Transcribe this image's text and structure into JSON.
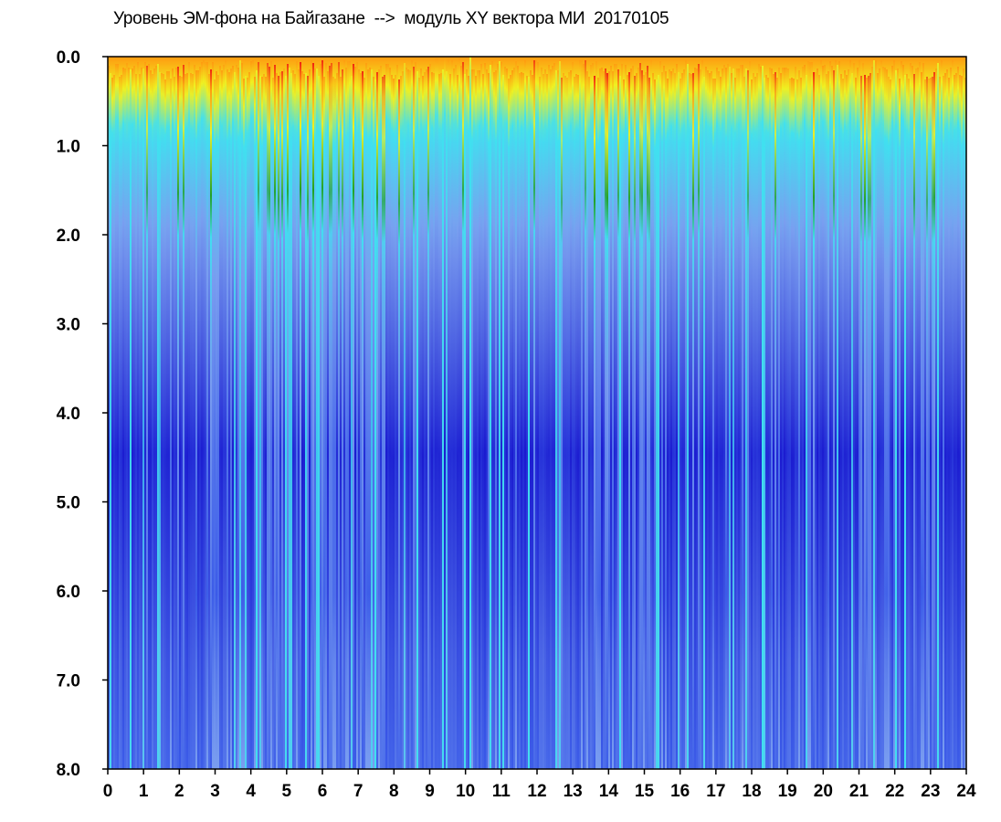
{
  "chart_data": {
    "type": "heatmap",
    "title": "Уровень ЭМ-фона на Байгазане  -->  модуль XY вектора МИ  20170105",
    "xlabel": "",
    "ylabel": "",
    "x_range": [
      0,
      24
    ],
    "y_range": [
      0.0,
      8.0
    ],
    "y_inverted": true,
    "x_ticks": [
      "0",
      "1",
      "2",
      "3",
      "4",
      "5",
      "6",
      "7",
      "8",
      "9",
      "10",
      "11",
      "12",
      "13",
      "14",
      "15",
      "16",
      "17",
      "18",
      "19",
      "20",
      "21",
      "22",
      "23",
      "24"
    ],
    "y_ticks": [
      "0.0",
      "1.0",
      "2.0",
      "3.0",
      "4.0",
      "5.0",
      "6.0",
      "7.0",
      "8.0"
    ],
    "colorscale": [
      "#1a1ad0",
      "#3a5ae8",
      "#7a9ef0",
      "#40e0f0",
      "#20a020",
      "#f0f020",
      "#ff9a10",
      "#f02010"
    ],
    "grid": false,
    "legend": "none"
  }
}
